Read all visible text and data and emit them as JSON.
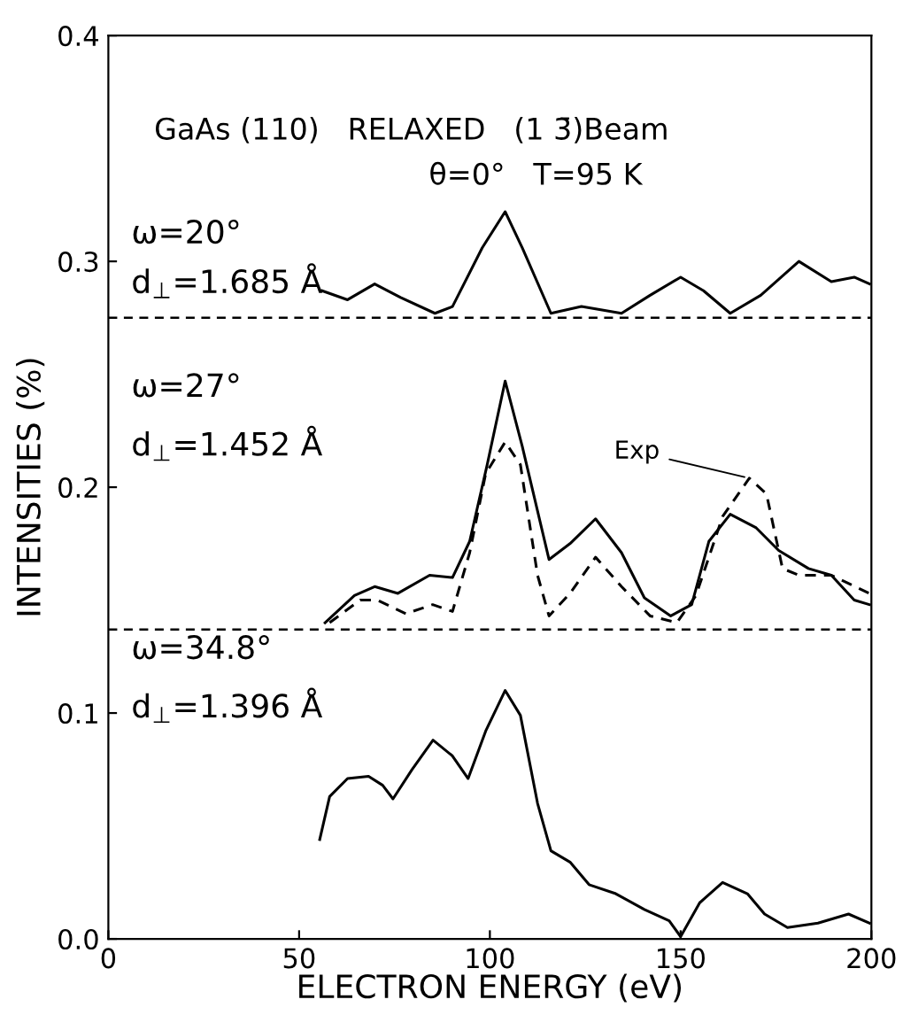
{
  "chart_data": {
    "type": "line",
    "title": "GaAs (110)   RELAXED   (1 3̄)Beam",
    "subtitle": "θ=0°   T=95 K",
    "xlabel": "ELECTRON ENERGY (eV)",
    "ylabel": "INTENSITIES (%)",
    "xlim": [
      0,
      200
    ],
    "ylim": [
      0,
      0.4
    ],
    "xticks": [
      0,
      50,
      100,
      150,
      200
    ],
    "yticks": [
      {
        "value": 0,
        "label": "0.0"
      },
      {
        "value": 0.1,
        "label": "0.1"
      },
      {
        "value": 0.2,
        "label": "0.2"
      },
      {
        "value": 0.3,
        "label": "0.3"
      },
      {
        "value": 0.4,
        "label": "0.4"
      }
    ],
    "grid": false,
    "marker": "none",
    "annotations": [
      "ω=20°",
      "d$_{⊥}$=1.685 Å",
      "ω=27°",
      "d$_{⊥}$=1.452 Å",
      "ω=34.8°",
      "d$_{⊥}$=1.396 Å"
    ],
    "ref_lines": [
      {
        "axis": "y",
        "value": 0.275,
        "label": null,
        "color": "#000000",
        "line_style": "dashed"
      },
      {
        "axis": "y",
        "value": 0.137,
        "label": null,
        "color": "#000000",
        "line_style": "dashed"
      }
    ],
    "series": [
      {
        "color": "#000000",
        "line_style": "solid",
        "x": [
          56,
          62.7,
          69.8,
          76.6,
          85.6,
          90.2,
          98,
          104,
          108.5,
          116,
          124,
          134.5,
          142,
          150,
          156,
          163,
          171,
          181,
          189.5,
          195.5,
          199.5
        ],
        "values": [
          0.287,
          0.283,
          0.29,
          0.284,
          0.277,
          0.28,
          0.306,
          0.322,
          0.306,
          0.277,
          0.28,
          0.277,
          0.285,
          0.293,
          0.287,
          0.277,
          0.285,
          0.3,
          0.291,
          0.293,
          0.29
        ]
      },
      {
        "color": "#000000",
        "line_style": "solid",
        "x": [
          56.8,
          64.5,
          69.8,
          75.9,
          84.2,
          90.2,
          94.7,
          99.3,
          104,
          108.5,
          115.5,
          121,
          127.7,
          134.5,
          140.5,
          147.4,
          152.9,
          157.4,
          163,
          169.8,
          175.7,
          183.5,
          189.5,
          195.5,
          199.5
        ],
        "values": [
          0.14,
          0.152,
          0.156,
          0.153,
          0.161,
          0.16,
          0.176,
          0.21,
          0.247,
          0.218,
          0.168,
          0.175,
          0.186,
          0.171,
          0.151,
          0.143,
          0.148,
          0.176,
          0.188,
          0.182,
          0.172,
          0.164,
          0.161,
          0.15,
          0.148
        ]
      },
      {
        "name": "Exp",
        "color": "#000000",
        "line_style": "dashed",
        "x": [
          58,
          66,
          70.5,
          78,
          85,
          90.2,
          94.7,
          98.9,
          104,
          108,
          112.5,
          115.5,
          121,
          127.7,
          134.5,
          142,
          149,
          154,
          161,
          168,
          172.5,
          176.7,
          181,
          189.5,
          199.5
        ],
        "values": [
          0.14,
          0.15,
          0.15,
          0.144,
          0.148,
          0.145,
          0.171,
          0.206,
          0.22,
          0.21,
          0.161,
          0.143,
          0.153,
          0.169,
          0.156,
          0.143,
          0.14,
          0.152,
          0.187,
          0.204,
          0.197,
          0.164,
          0.161,
          0.161,
          0.153
        ]
      },
      {
        "color": "#000000",
        "line_style": "solid",
        "x": [
          55.4,
          58,
          62.7,
          68.2,
          71.9,
          74.6,
          79.6,
          85.1,
          90.2,
          94.3,
          98.9,
          104,
          108,
          112.5,
          116,
          121,
          126,
          133,
          140.5,
          147,
          150,
          155,
          161,
          167.5,
          172,
          178,
          186,
          194,
          199.5
        ],
        "values": [
          0.044,
          0.063,
          0.071,
          0.072,
          0.068,
          0.062,
          0.075,
          0.088,
          0.081,
          0.071,
          0.092,
          0.11,
          0.099,
          0.06,
          0.039,
          0.034,
          0.024,
          0.02,
          0.013,
          0.008,
          0.001,
          0.016,
          0.025,
          0.02,
          0.011,
          0.005,
          0.007,
          0.011,
          0.007
        ]
      }
    ]
  }
}
